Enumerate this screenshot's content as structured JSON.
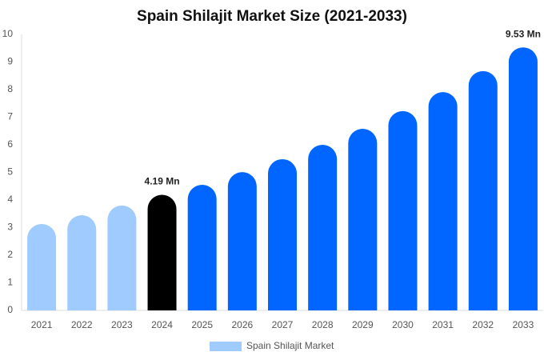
{
  "chart_data": {
    "type": "bar",
    "title": "Spain Shilajit Market Size (2021-2033)",
    "categories": [
      "2021",
      "2022",
      "2023",
      "2024",
      "2025",
      "2026",
      "2027",
      "2028",
      "2029",
      "2030",
      "2031",
      "2032",
      "2033"
    ],
    "series": [
      {
        "name": "Spain Shilajit Market",
        "color": "#a0cbff",
        "values": [
          3.13,
          3.45,
          3.8,
          4.19,
          4.55,
          5.01,
          5.48,
          6.0,
          6.58,
          7.22,
          7.91,
          8.67,
          9.53
        ],
        "value_labels": [
          null,
          null,
          null,
          "4.19 Mn",
          null,
          null,
          null,
          null,
          null,
          null,
          null,
          null,
          "9.53 Mn"
        ],
        "colors": [
          "#a0cbff",
          "#a0cbff",
          "#a0cbff",
          "#000000",
          "#0066ff",
          "#0066ff",
          "#0066ff",
          "#0066ff",
          "#0066ff",
          "#0066ff",
          "#0066ff",
          "#0066ff",
          "#0066ff"
        ]
      }
    ],
    "ylim": [
      0,
      10
    ],
    "yticks": [
      0,
      1,
      2,
      3,
      4,
      5,
      6,
      7,
      8,
      9,
      10
    ],
    "grid": false
  }
}
